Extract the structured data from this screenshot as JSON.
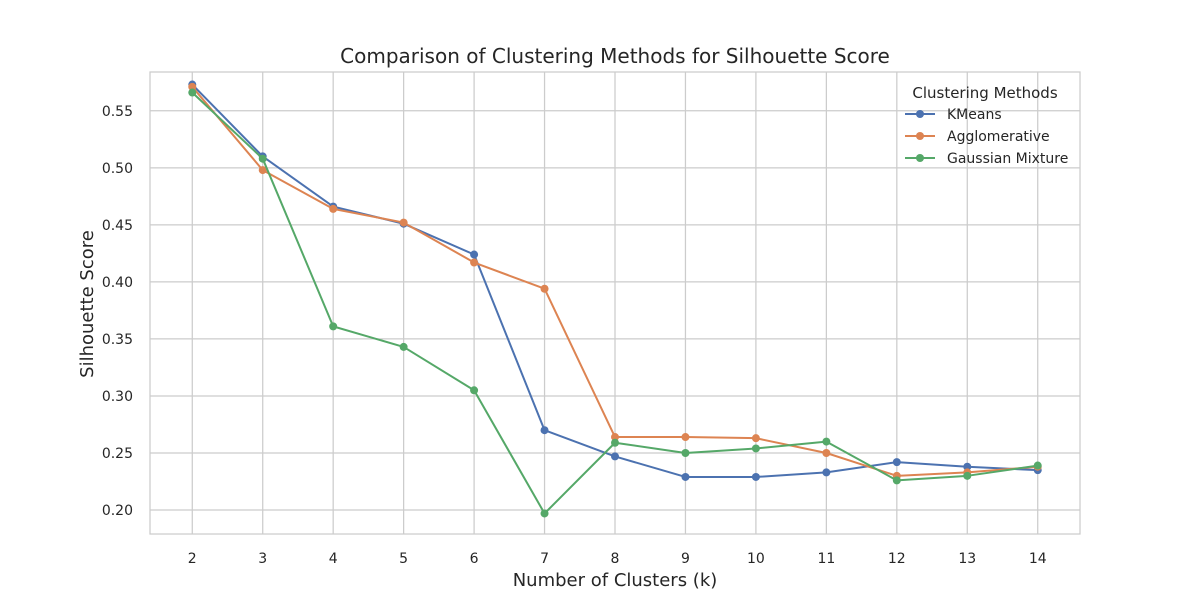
{
  "chart_data": {
    "type": "line",
    "title": "Comparison of Clustering Methods for Silhouette Score",
    "xlabel": "Number of Clusters (k)",
    "ylabel": "Silhouette Score",
    "x": [
      2,
      3,
      4,
      5,
      6,
      7,
      8,
      9,
      10,
      11,
      12,
      13,
      14
    ],
    "xticks": [
      "2",
      "3",
      "4",
      "5",
      "6",
      "7",
      "8",
      "9",
      "10",
      "11",
      "12",
      "13",
      "14"
    ],
    "xlim": [
      1.4,
      14.6
    ],
    "ylim": [
      0.179,
      0.584
    ],
    "yticks": [
      "0.20",
      "0.25",
      "0.30",
      "0.35",
      "0.40",
      "0.45",
      "0.50",
      "0.55"
    ],
    "ytick_values": [
      0.2,
      0.25,
      0.3,
      0.35,
      0.4,
      0.45,
      0.5,
      0.55
    ],
    "grid": true,
    "legend": {
      "title": "Clustering Methods",
      "placement": "top-right"
    },
    "series": [
      {
        "name": "KMeans",
        "color": "#4c72b0",
        "values": [
          0.573,
          0.51,
          0.466,
          0.451,
          0.424,
          0.27,
          0.247,
          0.229,
          0.229,
          0.233,
          0.242,
          0.238,
          0.235
        ]
      },
      {
        "name": "Agglomerative",
        "color": "#dd8452",
        "values": [
          0.571,
          0.498,
          0.464,
          0.452,
          0.417,
          0.394,
          0.264,
          0.264,
          0.263,
          0.25,
          0.23,
          0.233,
          0.238
        ]
      },
      {
        "name": "Gaussian Mixture",
        "color": "#55a868",
        "values": [
          0.566,
          0.508,
          0.361,
          0.343,
          0.305,
          0.197,
          0.259,
          0.25,
          0.254,
          0.26,
          0.226,
          0.23,
          0.239
        ]
      }
    ]
  }
}
